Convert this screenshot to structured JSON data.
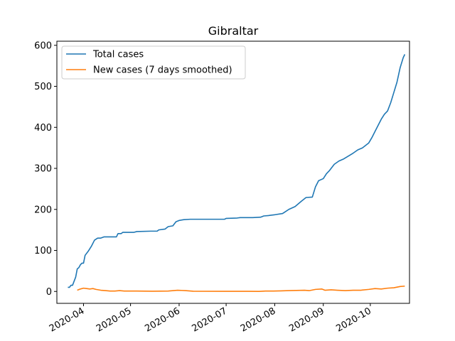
{
  "chart_data": {
    "type": "line",
    "title": "Gibraltar",
    "xlabel": "",
    "ylabel": "",
    "x_axis": "date",
    "xlim": [
      "2020-03-15",
      "2020-10-26"
    ],
    "ylim": [
      -29,
      610
    ],
    "y_ticks": [
      0,
      100,
      200,
      300,
      400,
      500,
      600
    ],
    "x_ticks": [
      "2020-04",
      "2020-05",
      "2020-06",
      "2020-07",
      "2020-08",
      "2020-09",
      "2020-10"
    ],
    "x_tick_dates": [
      "2020-04-01",
      "2020-05-01",
      "2020-06-01",
      "2020-07-01",
      "2020-08-01",
      "2020-09-01",
      "2020-10-01"
    ],
    "grid": false,
    "legend_position": "top-left",
    "series": [
      {
        "name": "Total cases",
        "color": "#1f77b4",
        "points": [
          [
            "2020-03-22",
            10
          ],
          [
            "2020-03-23",
            10
          ],
          [
            "2020-03-24",
            15
          ],
          [
            "2020-03-25",
            15
          ],
          [
            "2020-03-27",
            35
          ],
          [
            "2020-03-28",
            55
          ],
          [
            "2020-03-29",
            58
          ],
          [
            "2020-03-30",
            65
          ],
          [
            "2020-03-31",
            69
          ],
          [
            "2020-04-01",
            69
          ],
          [
            "2020-04-02",
            88
          ],
          [
            "2020-04-04",
            98
          ],
          [
            "2020-04-06",
            110
          ],
          [
            "2020-04-08",
            125
          ],
          [
            "2020-04-10",
            130
          ],
          [
            "2020-04-12",
            130
          ],
          [
            "2020-04-14",
            133
          ],
          [
            "2020-04-20",
            133
          ],
          [
            "2020-04-22",
            133
          ],
          [
            "2020-04-23",
            141
          ],
          [
            "2020-04-25",
            141
          ],
          [
            "2020-04-26",
            144
          ],
          [
            "2020-05-03",
            144
          ],
          [
            "2020-05-05",
            146
          ],
          [
            "2020-05-14",
            147
          ],
          [
            "2020-05-18",
            147
          ],
          [
            "2020-05-19",
            150
          ],
          [
            "2020-05-23",
            152
          ],
          [
            "2020-05-25",
            158
          ],
          [
            "2020-05-28",
            160
          ],
          [
            "2020-05-30",
            170
          ],
          [
            "2020-06-01",
            173
          ],
          [
            "2020-06-04",
            175
          ],
          [
            "2020-06-08",
            176
          ],
          [
            "2020-06-30",
            176
          ],
          [
            "2020-07-01",
            178
          ],
          [
            "2020-07-08",
            179
          ],
          [
            "2020-07-10",
            180
          ],
          [
            "2020-07-18",
            180
          ],
          [
            "2020-07-23",
            181
          ],
          [
            "2020-07-25",
            184
          ],
          [
            "2020-07-28",
            185
          ],
          [
            "2020-08-01",
            187
          ],
          [
            "2020-08-06",
            190
          ],
          [
            "2020-08-08",
            195
          ],
          [
            "2020-08-10",
            200
          ],
          [
            "2020-08-14",
            207
          ],
          [
            "2020-08-18",
            220
          ],
          [
            "2020-08-21",
            229
          ],
          [
            "2020-08-25",
            230
          ],
          [
            "2020-08-27",
            255
          ],
          [
            "2020-08-29",
            270
          ],
          [
            "2020-09-01",
            275
          ],
          [
            "2020-09-03",
            287
          ],
          [
            "2020-09-05",
            295
          ],
          [
            "2020-09-08",
            310
          ],
          [
            "2020-09-11",
            318
          ],
          [
            "2020-09-14",
            323
          ],
          [
            "2020-09-17",
            330
          ],
          [
            "2020-09-20",
            337
          ],
          [
            "2020-09-23",
            345
          ],
          [
            "2020-09-26",
            350
          ],
          [
            "2020-09-30",
            362
          ],
          [
            "2020-10-02",
            375
          ],
          [
            "2020-10-04",
            390
          ],
          [
            "2020-10-06",
            405
          ],
          [
            "2020-10-08",
            420
          ],
          [
            "2020-10-10",
            432
          ],
          [
            "2020-10-12",
            440
          ],
          [
            "2020-10-14",
            460
          ],
          [
            "2020-10-16",
            485
          ],
          [
            "2020-10-18",
            510
          ],
          [
            "2020-10-20",
            545
          ],
          [
            "2020-10-22",
            570
          ],
          [
            "2020-10-23",
            578
          ]
        ]
      },
      {
        "name": "New cases (7 days smoothed)",
        "color": "#ff7f0e",
        "points": [
          [
            "2020-03-28",
            3
          ],
          [
            "2020-03-30",
            6
          ],
          [
            "2020-04-01",
            8
          ],
          [
            "2020-04-03",
            7
          ],
          [
            "2020-04-05",
            6
          ],
          [
            "2020-04-07",
            7
          ],
          [
            "2020-04-09",
            5
          ],
          [
            "2020-04-12",
            3
          ],
          [
            "2020-04-15",
            2
          ],
          [
            "2020-04-18",
            1
          ],
          [
            "2020-04-21",
            1
          ],
          [
            "2020-04-24",
            2
          ],
          [
            "2020-04-27",
            1
          ],
          [
            "2020-05-05",
            1
          ],
          [
            "2020-05-15",
            0.5
          ],
          [
            "2020-05-25",
            1
          ],
          [
            "2020-05-31",
            3
          ],
          [
            "2020-06-05",
            2
          ],
          [
            "2020-06-10",
            0.5
          ],
          [
            "2020-06-30",
            0.3
          ],
          [
            "2020-07-15",
            0.3
          ],
          [
            "2020-07-22",
            0.2
          ],
          [
            "2020-07-26",
            1
          ],
          [
            "2020-07-31",
            1
          ],
          [
            "2020-08-05",
            1.5
          ],
          [
            "2020-08-10",
            2
          ],
          [
            "2020-08-15",
            2.5
          ],
          [
            "2020-08-20",
            3
          ],
          [
            "2020-08-23",
            2
          ],
          [
            "2020-08-27",
            5
          ],
          [
            "2020-08-31",
            6
          ],
          [
            "2020-09-02",
            3
          ],
          [
            "2020-09-06",
            4
          ],
          [
            "2020-09-10",
            3
          ],
          [
            "2020-09-15",
            2
          ],
          [
            "2020-09-20",
            3
          ],
          [
            "2020-09-25",
            3
          ],
          [
            "2020-09-30",
            5
          ],
          [
            "2020-10-04",
            7
          ],
          [
            "2020-10-08",
            6
          ],
          [
            "2020-10-12",
            8
          ],
          [
            "2020-10-16",
            9
          ],
          [
            "2020-10-20",
            12
          ],
          [
            "2020-10-23",
            13
          ]
        ]
      }
    ]
  }
}
